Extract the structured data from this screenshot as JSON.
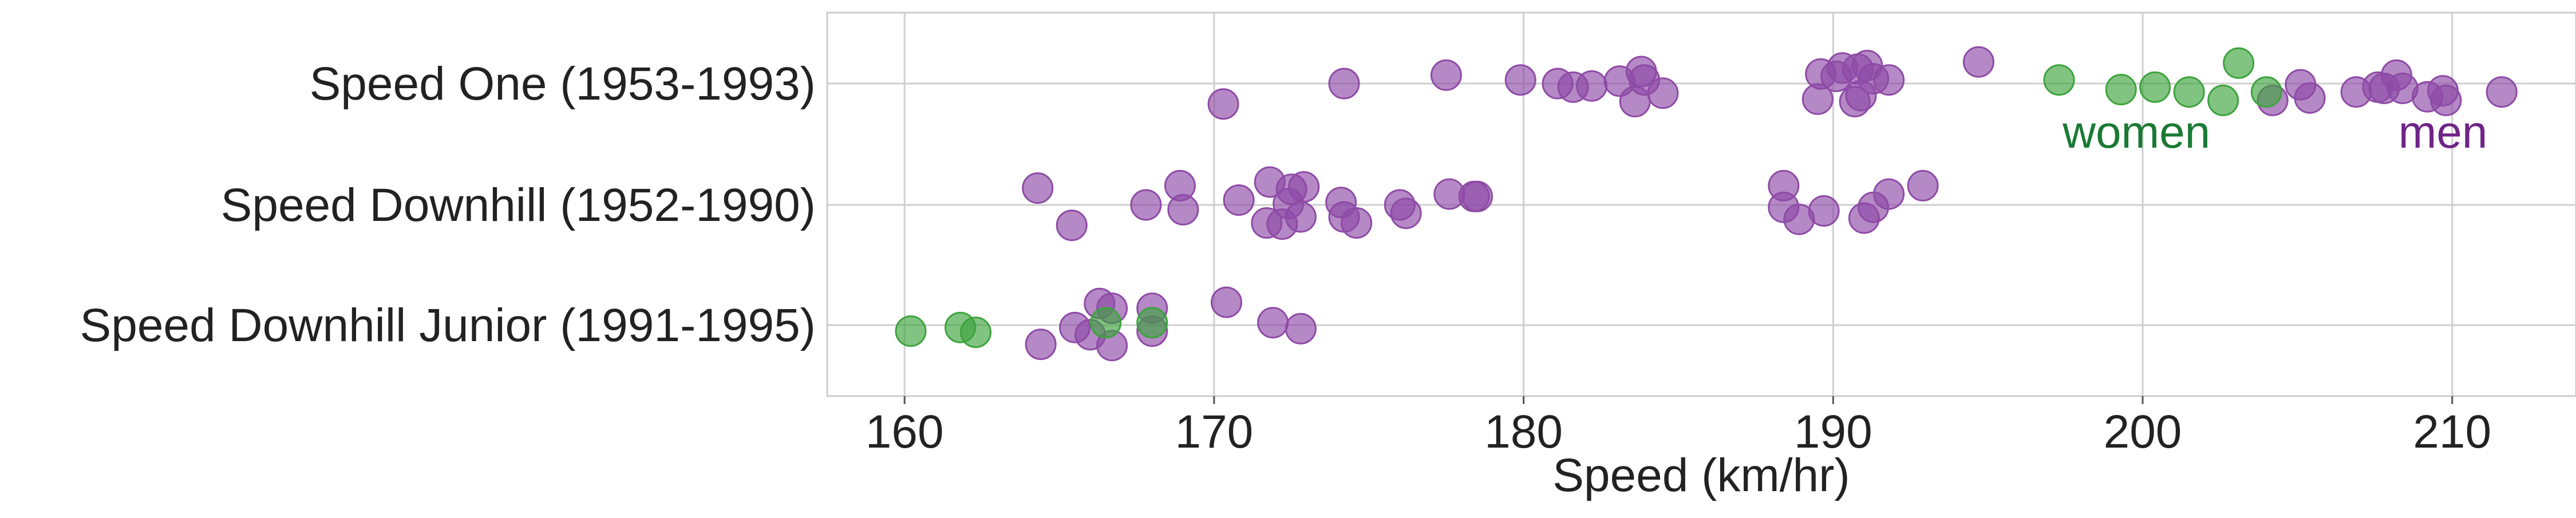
{
  "chart_data": {
    "type": "scatter",
    "title": "",
    "xlabel": "Speed (km/hr)",
    "ylabel": "",
    "xlim": [
      157.5,
      214.0
    ],
    "x_ticks": [
      160,
      170,
      180,
      190,
      200,
      210
    ],
    "categories": [
      "Speed One (1953-1993)",
      "Speed Downhill (1952-1990)",
      "Speed Downhill Junior (1991-1995)"
    ],
    "grid": true,
    "annotations": [
      {
        "text": "women",
        "series": "women",
        "x": 199.8,
        "category": "Speed One (1953-1993)"
      },
      {
        "text": "men",
        "series": "men",
        "x": 209.7,
        "category": "Speed One (1953-1993)"
      }
    ],
    "series": [
      {
        "name": "men",
        "color": "#8e4aa6",
        "points": [
          {
            "category": "Speed One (1953-1993)",
            "x": 170.3,
            "offset": -0.17
          },
          {
            "category": "Speed One (1953-1993)",
            "x": 174.2,
            "offset": 0.0
          },
          {
            "category": "Speed One (1953-1993)",
            "x": 177.5,
            "offset": 0.07
          },
          {
            "category": "Speed One (1953-1993)",
            "x": 179.9,
            "offset": 0.03
          },
          {
            "category": "Speed One (1953-1993)",
            "x": 181.1,
            "offset": 0.0
          },
          {
            "category": "Speed One (1953-1993)",
            "x": 181.6,
            "offset": -0.03
          },
          {
            "category": "Speed One (1953-1993)",
            "x": 182.2,
            "offset": -0.02
          },
          {
            "category": "Speed One (1953-1993)",
            "x": 183.1,
            "offset": 0.02
          },
          {
            "category": "Speed One (1953-1993)",
            "x": 183.6,
            "offset": -0.15
          },
          {
            "category": "Speed One (1953-1993)",
            "x": 183.8,
            "offset": 0.1
          },
          {
            "category": "Speed One (1953-1993)",
            "x": 183.9,
            "offset": 0.03
          },
          {
            "category": "Speed One (1953-1993)",
            "x": 184.5,
            "offset": -0.08
          },
          {
            "category": "Speed One (1953-1993)",
            "x": 189.5,
            "offset": -0.13
          },
          {
            "category": "Speed One (1953-1993)",
            "x": 189.6,
            "offset": 0.08
          },
          {
            "category": "Speed One (1953-1993)",
            "x": 190.1,
            "offset": 0.06
          },
          {
            "category": "Speed One (1953-1993)",
            "x": 190.3,
            "offset": 0.13
          },
          {
            "category": "Speed One (1953-1993)",
            "x": 190.7,
            "offset": -0.15
          },
          {
            "category": "Speed One (1953-1993)",
            "x": 190.8,
            "offset": 0.12
          },
          {
            "category": "Speed One (1953-1993)",
            "x": 190.9,
            "offset": -0.1
          },
          {
            "category": "Speed One (1953-1993)",
            "x": 191.1,
            "offset": 0.15
          },
          {
            "category": "Speed One (1953-1993)",
            "x": 191.3,
            "offset": 0.04
          },
          {
            "category": "Speed One (1953-1993)",
            "x": 191.8,
            "offset": 0.03
          },
          {
            "category": "Speed One (1953-1993)",
            "x": 194.7,
            "offset": 0.18
          },
          {
            "category": "Speed One (1953-1993)",
            "x": 204.2,
            "offset": -0.14
          },
          {
            "category": "Speed One (1953-1993)",
            "x": 205.1,
            "offset": -0.01
          },
          {
            "category": "Speed One (1953-1993)",
            "x": 205.4,
            "offset": -0.12
          },
          {
            "category": "Speed One (1953-1993)",
            "x": 206.9,
            "offset": -0.07
          },
          {
            "category": "Speed One (1953-1993)",
            "x": 207.6,
            "offset": -0.03
          },
          {
            "category": "Speed One (1953-1993)",
            "x": 207.8,
            "offset": -0.04
          },
          {
            "category": "Speed One (1953-1993)",
            "x": 208.2,
            "offset": 0.07
          },
          {
            "category": "Speed One (1953-1993)",
            "x": 208.4,
            "offset": -0.04
          },
          {
            "category": "Speed One (1953-1993)",
            "x": 209.2,
            "offset": -0.11
          },
          {
            "category": "Speed One (1953-1993)",
            "x": 209.7,
            "offset": -0.06
          },
          {
            "category": "Speed One (1953-1993)",
            "x": 209.8,
            "offset": -0.14
          },
          {
            "category": "Speed One (1953-1993)",
            "x": 211.6,
            "offset": -0.07
          },
          {
            "category": "Speed Downhill (1952-1990)",
            "x": 164.3,
            "offset": 0.14
          },
          {
            "category": "Speed Downhill (1952-1990)",
            "x": 165.4,
            "offset": -0.17
          },
          {
            "category": "Speed Downhill (1952-1990)",
            "x": 167.8,
            "offset": 0.0
          },
          {
            "category": "Speed Downhill (1952-1990)",
            "x": 168.9,
            "offset": 0.16
          },
          {
            "category": "Speed Downhill (1952-1990)",
            "x": 169.0,
            "offset": -0.04
          },
          {
            "category": "Speed Downhill (1952-1990)",
            "x": 170.8,
            "offset": 0.04
          },
          {
            "category": "Speed Downhill (1952-1990)",
            "x": 171.7,
            "offset": -0.15
          },
          {
            "category": "Speed Downhill (1952-1990)",
            "x": 171.8,
            "offset": 0.19
          },
          {
            "category": "Speed Downhill (1952-1990)",
            "x": 172.2,
            "offset": -0.16
          },
          {
            "category": "Speed Downhill (1952-1990)",
            "x": 172.4,
            "offset": 0.01
          },
          {
            "category": "Speed Downhill (1952-1990)",
            "x": 172.5,
            "offset": 0.13
          },
          {
            "category": "Speed Downhill (1952-1990)",
            "x": 172.8,
            "offset": -0.1
          },
          {
            "category": "Speed Downhill (1952-1990)",
            "x": 172.9,
            "offset": 0.15
          },
          {
            "category": "Speed Downhill (1952-1990)",
            "x": 174.1,
            "offset": 0.02
          },
          {
            "category": "Speed Downhill (1952-1990)",
            "x": 174.2,
            "offset": -0.1
          },
          {
            "category": "Speed Downhill (1952-1990)",
            "x": 174.6,
            "offset": -0.15
          },
          {
            "category": "Speed Downhill (1952-1990)",
            "x": 176.0,
            "offset": 0.0
          },
          {
            "category": "Speed Downhill (1952-1990)",
            "x": 176.2,
            "offset": -0.07
          },
          {
            "category": "Speed Downhill (1952-1990)",
            "x": 177.6,
            "offset": 0.09
          },
          {
            "category": "Speed Downhill (1952-1990)",
            "x": 178.4,
            "offset": 0.07
          },
          {
            "category": "Speed Downhill (1952-1990)",
            "x": 178.5,
            "offset": 0.07
          },
          {
            "category": "Speed Downhill (1952-1990)",
            "x": 188.4,
            "offset": 0.16
          },
          {
            "category": "Speed Downhill (1952-1990)",
            "x": 188.4,
            "offset": -0.02
          },
          {
            "category": "Speed Downhill (1952-1990)",
            "x": 188.9,
            "offset": -0.12
          },
          {
            "category": "Speed Downhill (1952-1990)",
            "x": 189.7,
            "offset": -0.05
          },
          {
            "category": "Speed Downhill (1952-1990)",
            "x": 191.0,
            "offset": -0.11
          },
          {
            "category": "Speed Downhill (1952-1990)",
            "x": 191.3,
            "offset": -0.02
          },
          {
            "category": "Speed Downhill (1952-1990)",
            "x": 191.8,
            "offset": 0.09
          },
          {
            "category": "Speed Downhill (1952-1990)",
            "x": 192.9,
            "offset": 0.16
          },
          {
            "category": "Speed Downhill Junior (1991-1995)",
            "x": 164.4,
            "offset": -0.16
          },
          {
            "category": "Speed Downhill Junior (1991-1995)",
            "x": 165.5,
            "offset": -0.02
          },
          {
            "category": "Speed Downhill Junior (1991-1995)",
            "x": 166.0,
            "offset": -0.08
          },
          {
            "category": "Speed Downhill Junior (1991-1995)",
            "x": 166.3,
            "offset": 0.18
          },
          {
            "category": "Speed Downhill Junior (1991-1995)",
            "x": 166.7,
            "offset": 0.14
          },
          {
            "category": "Speed Downhill Junior (1991-1995)",
            "x": 166.7,
            "offset": -0.17
          },
          {
            "category": "Speed Downhill Junior (1991-1995)",
            "x": 168.0,
            "offset": 0.14
          },
          {
            "category": "Speed Downhill Junior (1991-1995)",
            "x": 168.0,
            "offset": -0.05
          },
          {
            "category": "Speed Downhill Junior (1991-1995)",
            "x": 170.4,
            "offset": 0.19
          },
          {
            "category": "Speed Downhill Junior (1991-1995)",
            "x": 171.9,
            "offset": 0.02
          },
          {
            "category": "Speed Downhill Junior (1991-1995)",
            "x": 172.8,
            "offset": -0.03
          }
        ]
      },
      {
        "name": "women",
        "color": "#3da33d",
        "points": [
          {
            "category": "Speed One (1953-1993)",
            "x": 197.3,
            "offset": 0.03
          },
          {
            "category": "Speed One (1953-1993)",
            "x": 199.3,
            "offset": -0.05
          },
          {
            "category": "Speed One (1953-1993)",
            "x": 200.4,
            "offset": -0.03
          },
          {
            "category": "Speed One (1953-1993)",
            "x": 201.5,
            "offset": -0.07
          },
          {
            "category": "Speed One (1953-1993)",
            "x": 202.6,
            "offset": -0.14
          },
          {
            "category": "Speed One (1953-1993)",
            "x": 203.1,
            "offset": 0.17
          },
          {
            "category": "Speed One (1953-1993)",
            "x": 204.0,
            "offset": -0.07
          },
          {
            "category": "Speed Downhill Junior (1991-1995)",
            "x": 160.2,
            "offset": -0.05
          },
          {
            "category": "Speed Downhill Junior (1991-1995)",
            "x": 161.8,
            "offset": -0.02
          },
          {
            "category": "Speed Downhill Junior (1991-1995)",
            "x": 162.3,
            "offset": -0.06
          },
          {
            "category": "Speed Downhill Junior (1991-1995)",
            "x": 166.5,
            "offset": 0.02
          },
          {
            "category": "Speed Downhill Junior (1991-1995)",
            "x": 168.0,
            "offset": 0.02
          }
        ]
      }
    ]
  }
}
